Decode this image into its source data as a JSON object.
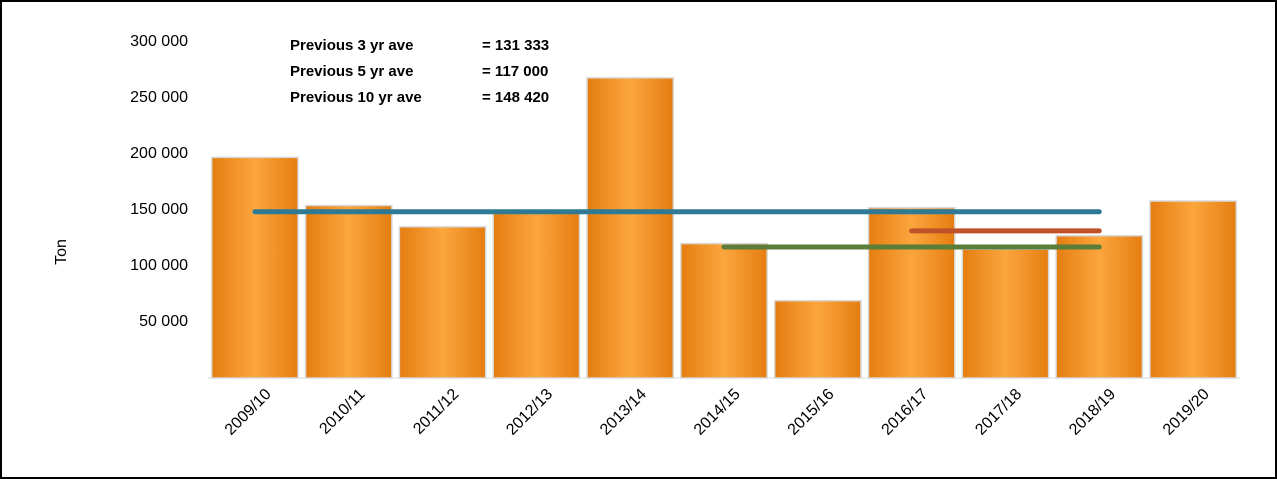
{
  "chart_data": {
    "type": "bar",
    "y_label": "Ton",
    "categories": [
      "2009/10",
      "2010/11",
      "2011/12",
      "2012/13",
      "2013/14",
      "2014/15",
      "2015/16",
      "2016/17",
      "2017/18",
      "2018/19",
      "2019/20"
    ],
    "values": [
      197000,
      154000,
      135000,
      148000,
      268000,
      120000,
      69000,
      152000,
      115000,
      127000,
      158000
    ],
    "color": "#f7931e",
    "ylim": [
      0,
      300000
    ],
    "yticks": [
      {
        "value": 50000,
        "label": "50 000"
      },
      {
        "value": 100000,
        "label": "100 000"
      },
      {
        "value": 150000,
        "label": "150 000"
      },
      {
        "value": 200000,
        "label": "200 000"
      },
      {
        "value": 250000,
        "label": "250 000"
      },
      {
        "value": 300000,
        "label": "300 000"
      }
    ],
    "lines": [
      {
        "name": "Previous 3 yr ave",
        "label": "= 131 333",
        "color": "#c0522a",
        "values": [
          null,
          null,
          null,
          null,
          null,
          null,
          null,
          131333,
          131333,
          131333,
          null
        ]
      },
      {
        "name": "Previous 5 yr ave",
        "label": "= 117 000",
        "color": "#5a7d3a",
        "values": [
          null,
          null,
          null,
          null,
          null,
          117000,
          117000,
          117000,
          117000,
          117000,
          null
        ]
      },
      {
        "name": "Previous 10 yr ave",
        "label": "= 148 420",
        "color": "#2e7a94",
        "values": [
          148420,
          148420,
          148420,
          148420,
          148420,
          148420,
          148420,
          148420,
          148420,
          148420,
          null
        ]
      }
    ]
  }
}
